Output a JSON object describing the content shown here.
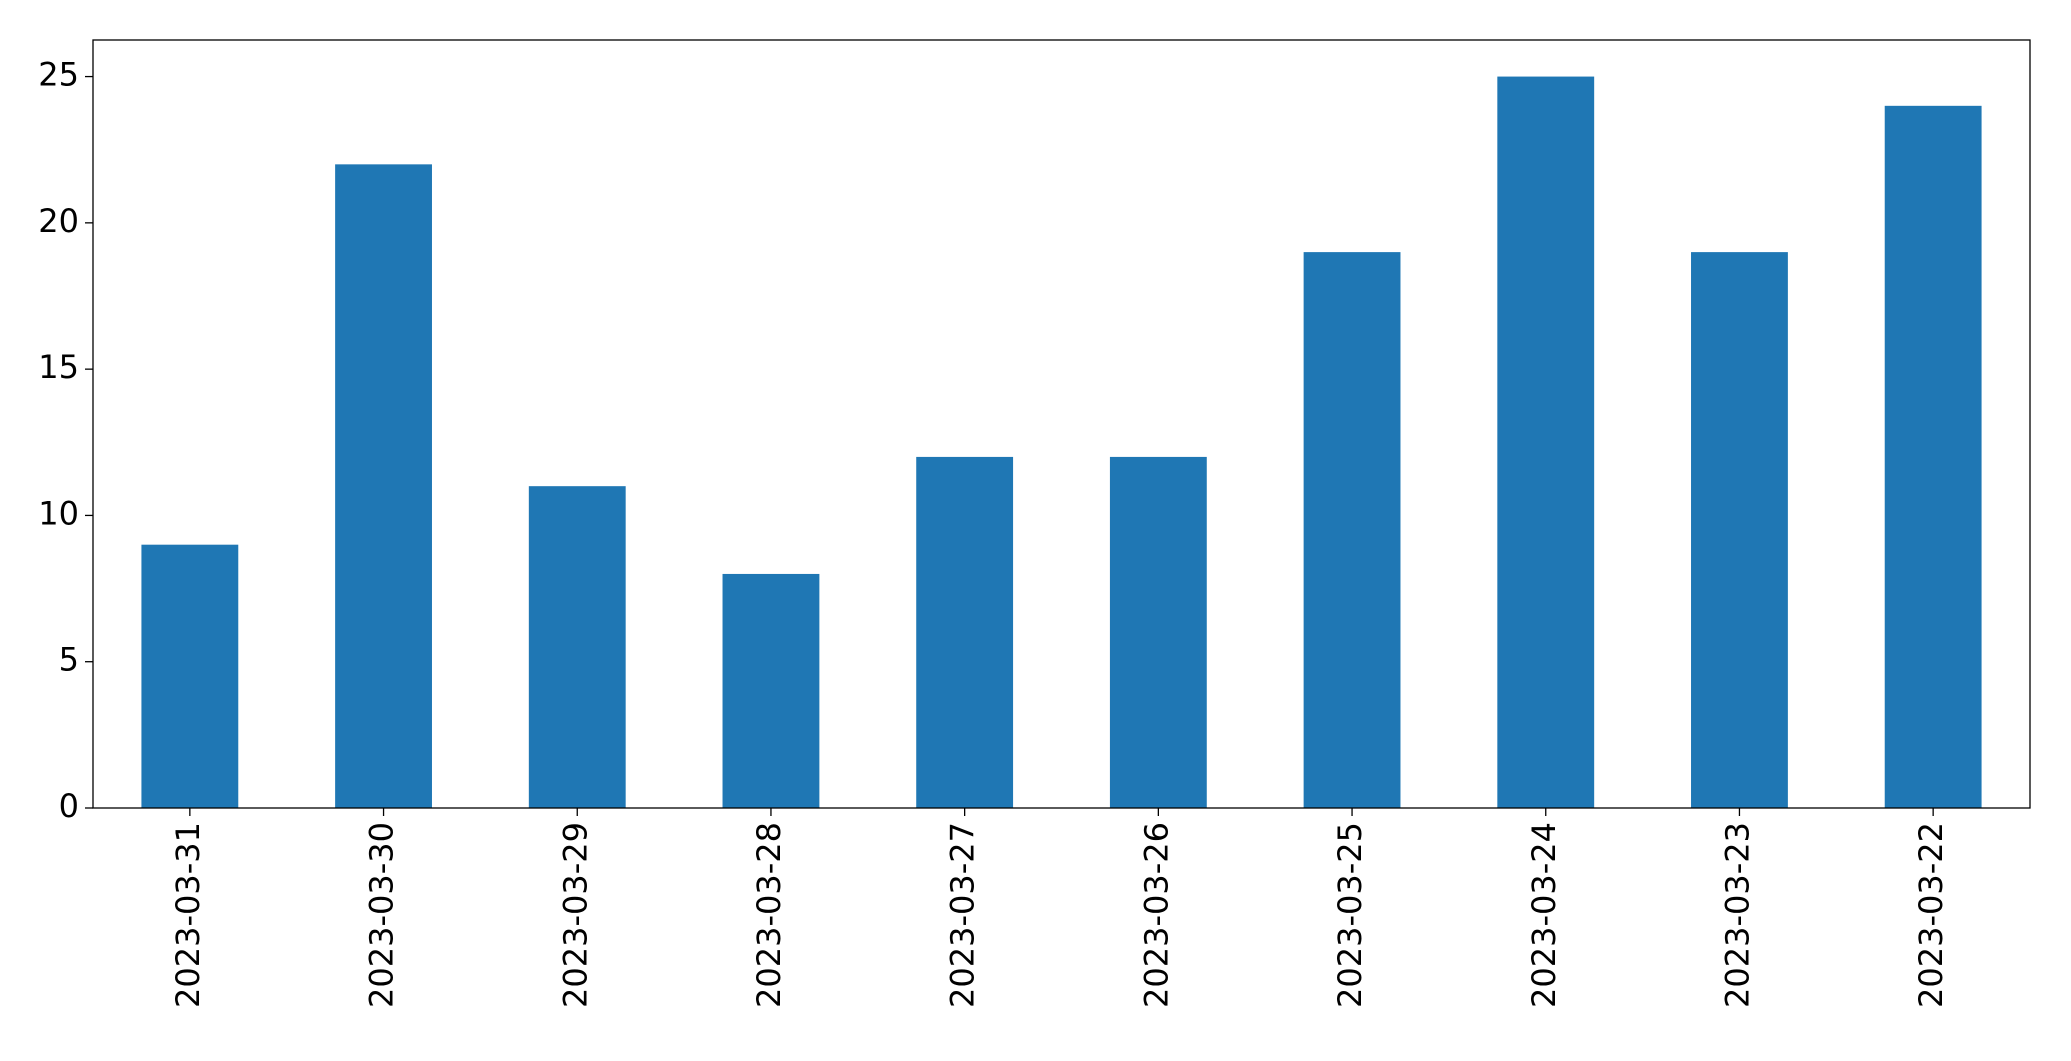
{
  "chart_data": {
    "type": "bar",
    "categories": [
      "2023-03-31",
      "2023-03-30",
      "2023-03-29",
      "2023-03-28",
      "2023-03-27",
      "2023-03-26",
      "2023-03-25",
      "2023-03-24",
      "2023-03-23",
      "2023-03-22"
    ],
    "values": [
      9,
      22,
      11,
      8,
      12,
      12,
      19,
      25,
      19,
      24
    ],
    "color": "#1f77b4",
    "ylim": [
      0,
      26.25
    ],
    "yticks": [
      0,
      5,
      10,
      15,
      20,
      25
    ],
    "grid": false
  }
}
